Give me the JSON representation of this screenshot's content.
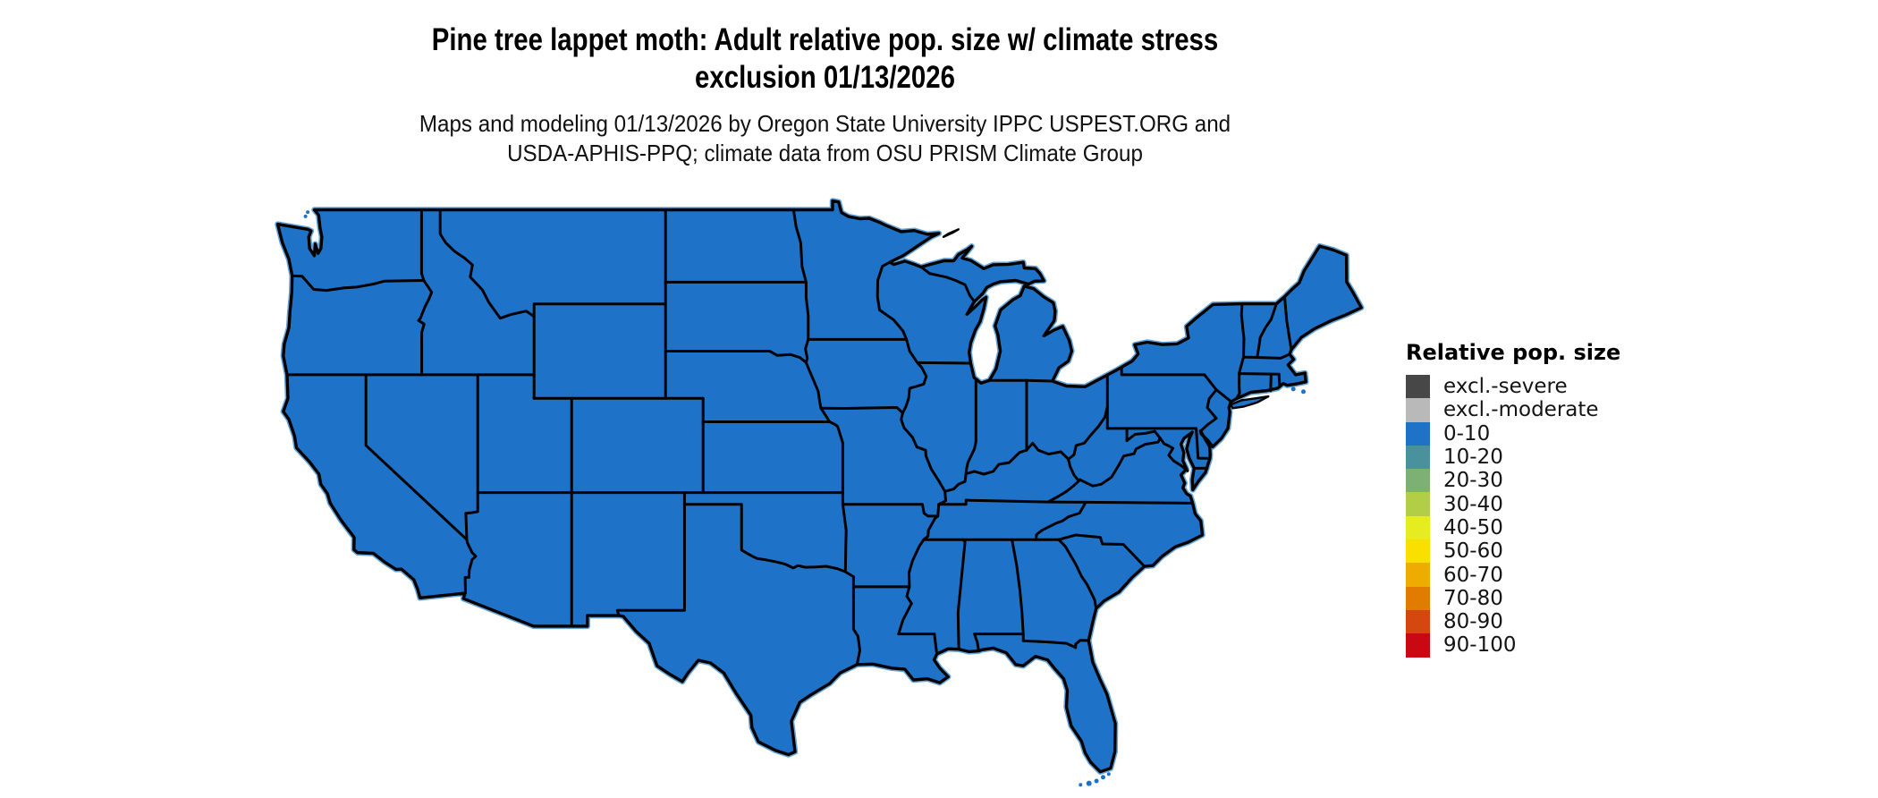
{
  "title": {
    "line1": "Pine tree lappet moth: Adult relative pop. size w/ climate stress",
    "line2": "exclusion 01/13/2026"
  },
  "subtitle": {
    "line1": "Maps and modeling 01/13/2026 by Oregon State University IPPC USPEST.ORG and",
    "line2": "USDA-APHIS-PPQ; climate data from OSU PRISM Climate Group"
  },
  "legend": {
    "title": "Relative pop. size",
    "items": [
      {
        "label": "excl.-severe",
        "color": "#474747"
      },
      {
        "label": "excl.-moderate",
        "color": "#b9b9b9"
      },
      {
        "label": "0-10",
        "color": "#1e73c8"
      },
      {
        "label": "10-20",
        "color": "#4a919e"
      },
      {
        "label": "20-30",
        "color": "#7db173"
      },
      {
        "label": "30-40",
        "color": "#b2ce47"
      },
      {
        "label": "40-50",
        "color": "#e5ec20"
      },
      {
        "label": "50-60",
        "color": "#fae000"
      },
      {
        "label": "60-70",
        "color": "#eeab00"
      },
      {
        "label": "70-80",
        "color": "#e17c00"
      },
      {
        "label": "80-90",
        "color": "#d4470e"
      },
      {
        "label": "90-100",
        "color": "#ca0813"
      }
    ]
  },
  "map": {
    "fill": "#1e73c8",
    "stroke": "#000000",
    "water": "#ffffff",
    "coast_halo": "#66a4d8",
    "all_regions_category": "0-10"
  }
}
